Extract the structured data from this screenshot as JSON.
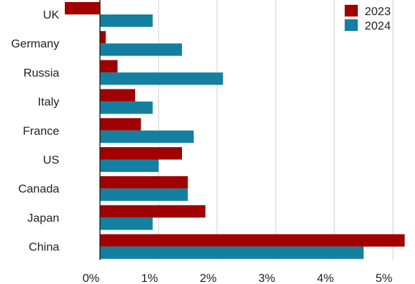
{
  "chart_data": {
    "type": "bar",
    "orientation": "horizontal",
    "categories": [
      "UK",
      "Germany",
      "Russia",
      "Italy",
      "France",
      "US",
      "Canada",
      "Japan",
      "China"
    ],
    "series": [
      {
        "name": "2023",
        "color": "#a00000",
        "values": [
          -0.6,
          0.1,
          0.3,
          0.6,
          0.7,
          1.4,
          1.5,
          1.8,
          5.2
        ]
      },
      {
        "name": "2024",
        "color": "#1380a1",
        "values": [
          0.9,
          1.4,
          2.1,
          0.9,
          1.6,
          1.0,
          1.5,
          0.9,
          4.5
        ]
      }
    ],
    "x_ticks": [
      "0%",
      "1%",
      "2%",
      "3%",
      "4%",
      "5%"
    ],
    "xlim": [
      -0.6,
      5.2
    ],
    "grid": true,
    "legend_position": "top-right"
  }
}
